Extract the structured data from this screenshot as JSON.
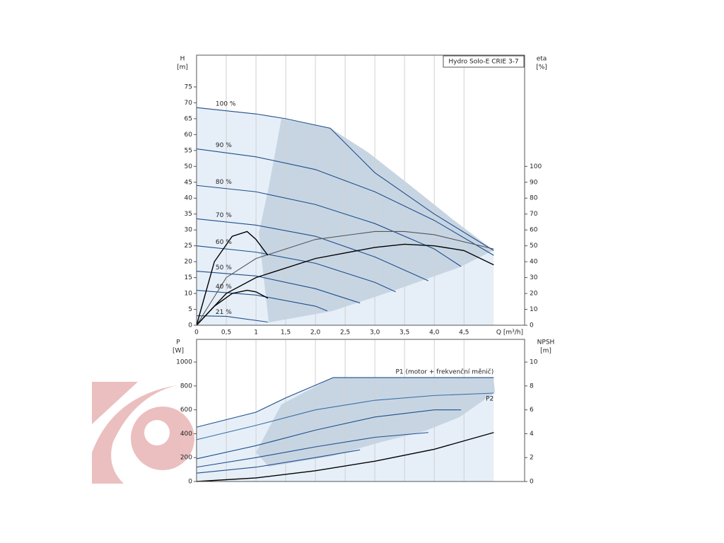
{
  "chart_data": [
    {
      "type": "line",
      "title": "Hydro Solo-E CRIE 3-7",
      "y_label": "H",
      "y_unit": "[m]",
      "y2_label": "eta",
      "y2_unit": "[%]",
      "x_label": "Q [m³/h]",
      "xlim": [
        0,
        5.52
      ],
      "ylim": [
        0,
        85
      ],
      "y2lim": [
        0,
        170
      ],
      "grid": "x",
      "label_position": "start",
      "xticks": [
        0,
        {
          "value": 0.5,
          "label": "0,5"
        },
        1,
        {
          "value": 1.5,
          "label": "1,5"
        },
        {
          "value": 2,
          "label": "2,0"
        },
        {
          "value": 2.5,
          "label": "2,5"
        },
        {
          "value": 3,
          "label": "3,0"
        },
        {
          "value": 3.5,
          "label": "3,5"
        },
        {
          "value": 4,
          "label": "4,0"
        },
        {
          "value": 4.5,
          "label": "4,5"
        }
      ],
      "yticks": [
        0,
        5,
        10,
        15,
        20,
        25,
        30,
        35,
        40,
        45,
        50,
        55,
        60,
        65,
        70,
        75
      ],
      "y2ticks": [
        0,
        10,
        20,
        30,
        40,
        50,
        60,
        70,
        80,
        90,
        100
      ],
      "series": [
        {
          "name": "100 %",
          "color": "#1f4e8c",
          "x": [
            0,
            1,
            1.5,
            2.25,
            3,
            4,
            5
          ],
          "values": [
            68.5,
            66.5,
            65,
            62,
            48,
            35,
            23.5
          ]
        },
        {
          "name": "90 %",
          "color": "#1f4e8c",
          "x": [
            0,
            1,
            2,
            3,
            4,
            5
          ],
          "values": [
            55.5,
            53,
            49,
            42,
            33,
            22
          ]
        },
        {
          "name": "80 %",
          "color": "#1f4e8c",
          "x": [
            0,
            1,
            2,
            3,
            4,
            4.45
          ],
          "values": [
            44,
            42,
            38,
            32,
            24,
            18.5
          ]
        },
        {
          "name": "70 %",
          "color": "#1f4e8c",
          "x": [
            0,
            1,
            2,
            3,
            3.9
          ],
          "values": [
            33.5,
            31.5,
            28,
            21.5,
            14
          ]
        },
        {
          "name": "60 %",
          "color": "#1f4e8c",
          "x": [
            0,
            1,
            2,
            3,
            3.35
          ],
          "values": [
            25,
            23,
            19.5,
            13.5,
            10.5
          ]
        },
        {
          "name": "50 %",
          "color": "#1f4e8c",
          "x": [
            0,
            1,
            2,
            2.75
          ],
          "values": [
            17,
            15.5,
            11.5,
            7
          ]
        },
        {
          "name": "40 %",
          "color": "#1f4e8c",
          "x": [
            0,
            1,
            2,
            2.2
          ],
          "values": [
            11,
            9.5,
            6,
            4.5
          ]
        },
        {
          "name": "21 %",
          "color": "#1f4e8c",
          "x": [
            0,
            0.5,
            1.2
          ],
          "values": [
            3,
            2.8,
            1
          ]
        },
        {
          "color": "#000000",
          "axis": "y2",
          "x": [
            0,
            0.5,
            1,
            2,
            3,
            3.5,
            4,
            4.5,
            5
          ],
          "values": [
            0,
            20,
            30,
            42,
            49,
            51,
            50,
            47,
            38
          ]
        },
        {
          "color": "#555555",
          "axis": "y2",
          "x": [
            0,
            0.5,
            1,
            2,
            3,
            3.5,
            4,
            5
          ],
          "values": [
            0,
            30,
            42,
            54,
            59,
            59,
            57,
            48
          ]
        },
        {
          "color": "#000000",
          "axis": "y2",
          "x": [
            0,
            0.3,
            0.6,
            0.85,
            1,
            1.2
          ],
          "values": [
            0,
            12,
            20,
            22,
            21,
            17
          ]
        },
        {
          "color": "#000000",
          "axis": "y2",
          "x": [
            0,
            0.3,
            0.6,
            0.85,
            1,
            1.2
          ],
          "values": [
            0,
            40,
            56,
            59,
            54,
            44
          ]
        }
      ]
    },
    {
      "type": "line",
      "y_label": "P",
      "y_unit": "[W]",
      "y2_label": "NPSH",
      "y2_unit": "[m]",
      "xlim": [
        0,
        5.52
      ],
      "ylim": [
        0,
        1190
      ],
      "y2lim": [
        0,
        11.9
      ],
      "grid": "x",
      "label_position": "end",
      "yticks": [
        0,
        200,
        400,
        600,
        800,
        1000
      ],
      "y2ticks": [
        0,
        2,
        4,
        6,
        8,
        10
      ],
      "series": [
        {
          "name": "P1 (motor + frekvenční měnič)",
          "color": "#1f4e8c",
          "x": [
            0,
            1,
            1.5,
            2.3,
            5
          ],
          "values": [
            455,
            580,
            700,
            870,
            870
          ]
        },
        {
          "name": "P2",
          "color": "#3a6ea5",
          "x": [
            0,
            1,
            2,
            3,
            4,
            5
          ],
          "values": [
            350,
            470,
            600,
            680,
            720,
            740
          ]
        },
        {
          "color": "#1f4e8c",
          "x": [
            0,
            1,
            2,
            3,
            4,
            4.45
          ],
          "values": [
            190,
            300,
            430,
            540,
            600,
            600
          ]
        },
        {
          "color": "#1f4e8c",
          "x": [
            0,
            1,
            2,
            3,
            3.9
          ],
          "values": [
            120,
            200,
            290,
            370,
            410
          ]
        },
        {
          "color": "#1f4e8c",
          "x": [
            0,
            1,
            2,
            2.75
          ],
          "values": [
            70,
            120,
            200,
            265
          ]
        },
        {
          "color": "#000000",
          "axis": "y2",
          "x": [
            0,
            1,
            2,
            3,
            4,
            5
          ],
          "values": [
            0,
            0.3,
            0.9,
            1.7,
            2.7,
            4.1
          ]
        }
      ]
    }
  ]
}
